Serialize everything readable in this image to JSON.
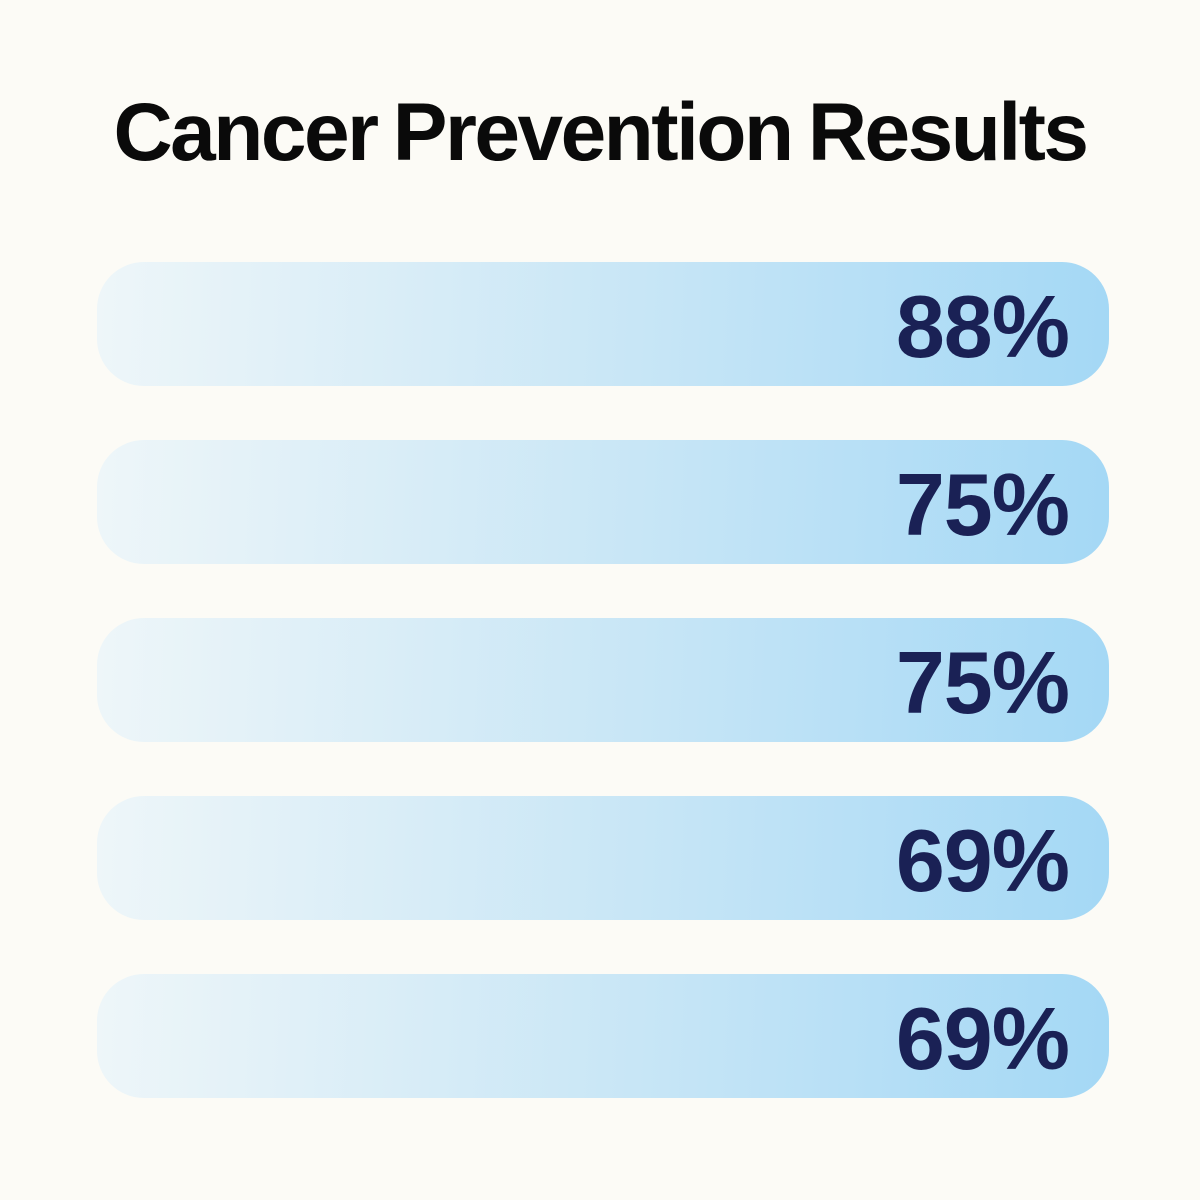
{
  "page": {
    "background_color": "#fcfbf6"
  },
  "chart_data": {
    "type": "bar",
    "orientation": "horizontal",
    "title": "Cancer Prevention Results",
    "title_color": "#0a0a0a",
    "categories": [
      "",
      "",
      "",
      "",
      ""
    ],
    "values": [
      88,
      75,
      75,
      69,
      69
    ],
    "value_labels": [
      "88%",
      "75%",
      "75%",
      "69%",
      "69%"
    ],
    "value_label_position": "inside-right",
    "value_label_color": "#1a2155",
    "bar_gradient_start": "#eef6f9",
    "bar_gradient_end": "#a4d8f5",
    "grid": false,
    "legend": false,
    "axes_visible": false
  }
}
